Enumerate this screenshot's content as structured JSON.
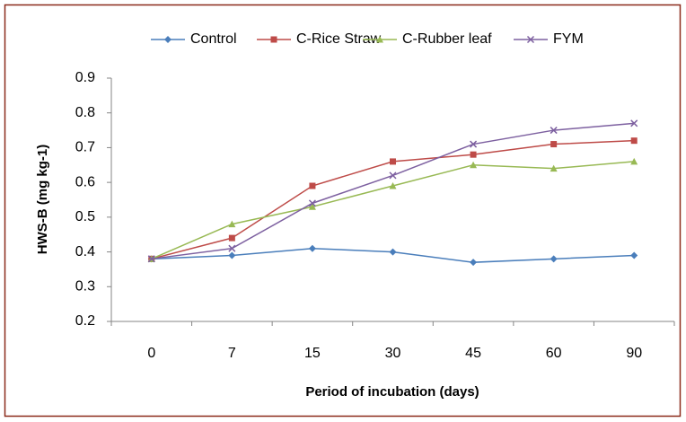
{
  "chart_data": {
    "type": "line",
    "xlabel": "Period of incubation (days)",
    "ylabel": "HWS-B (mg kg-1)",
    "categories": [
      "0",
      "7",
      "15",
      "30",
      "45",
      "60",
      "90"
    ],
    "ylim": [
      0.2,
      0.9
    ],
    "yticks": [
      0.2,
      0.3,
      0.4,
      0.5,
      0.6,
      0.7,
      0.8,
      0.9
    ],
    "legend": "top",
    "series": [
      {
        "name": "Control",
        "color": "#4a7ebb",
        "marker": "diamond",
        "values": [
          0.38,
          0.39,
          0.41,
          0.4,
          0.37,
          0.38,
          0.39
        ]
      },
      {
        "name": "C-Rice Straw",
        "color": "#be4b48",
        "marker": "square",
        "values": [
          0.38,
          0.44,
          0.59,
          0.66,
          0.68,
          0.71,
          0.72
        ]
      },
      {
        "name": "C-Rubber leaf",
        "color": "#98b954",
        "marker": "triangle",
        "values": [
          0.38,
          0.48,
          0.53,
          0.59,
          0.65,
          0.64,
          0.66
        ]
      },
      {
        "name": "FYM",
        "color": "#7d60a0",
        "marker": "x",
        "values": [
          0.38,
          0.41,
          0.54,
          0.62,
          0.71,
          0.75,
          0.77
        ]
      }
    ]
  }
}
